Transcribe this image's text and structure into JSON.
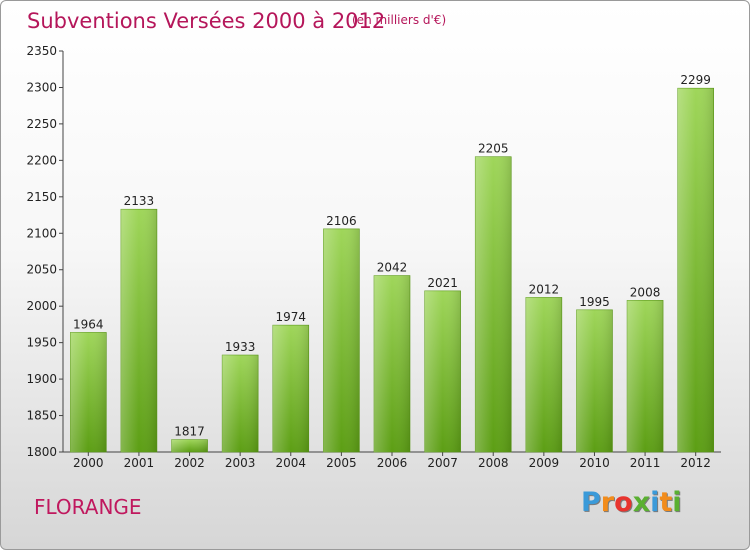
{
  "header": {
    "title": "Subventions Versées 2000 à 2012",
    "subtitle": "(en milliers d'€)"
  },
  "footer": {
    "city": "FLORANGE",
    "logo_letters": [
      "P",
      "r",
      "o",
      "x",
      "i",
      "t",
      "i"
    ],
    "logo_colors": [
      "#3a9ad9",
      "#f28c1b",
      "#e8342e",
      "#5ab031",
      "#3a9ad9",
      "#f28c1b",
      "#5ab031"
    ]
  },
  "chart_data": {
    "type": "bar",
    "title": "Subventions Versées 2000 à 2012",
    "subtitle": "(en milliers d'€)",
    "categories": [
      "2000",
      "2001",
      "2002",
      "2003",
      "2004",
      "2005",
      "2006",
      "2007",
      "2008",
      "2009",
      "2010",
      "2011",
      "2012"
    ],
    "values": [
      1964,
      2133,
      1817,
      1933,
      1974,
      2106,
      2042,
      2021,
      2205,
      2012,
      1995,
      2008,
      2299
    ],
    "ylim": [
      1800,
      2350
    ],
    "yticks": [
      1800,
      1850,
      1900,
      1950,
      2000,
      2050,
      2100,
      2150,
      2200,
      2250,
      2300,
      2350
    ],
    "grid": false,
    "bar_color": "#7cbf2a",
    "data_labels": true
  }
}
